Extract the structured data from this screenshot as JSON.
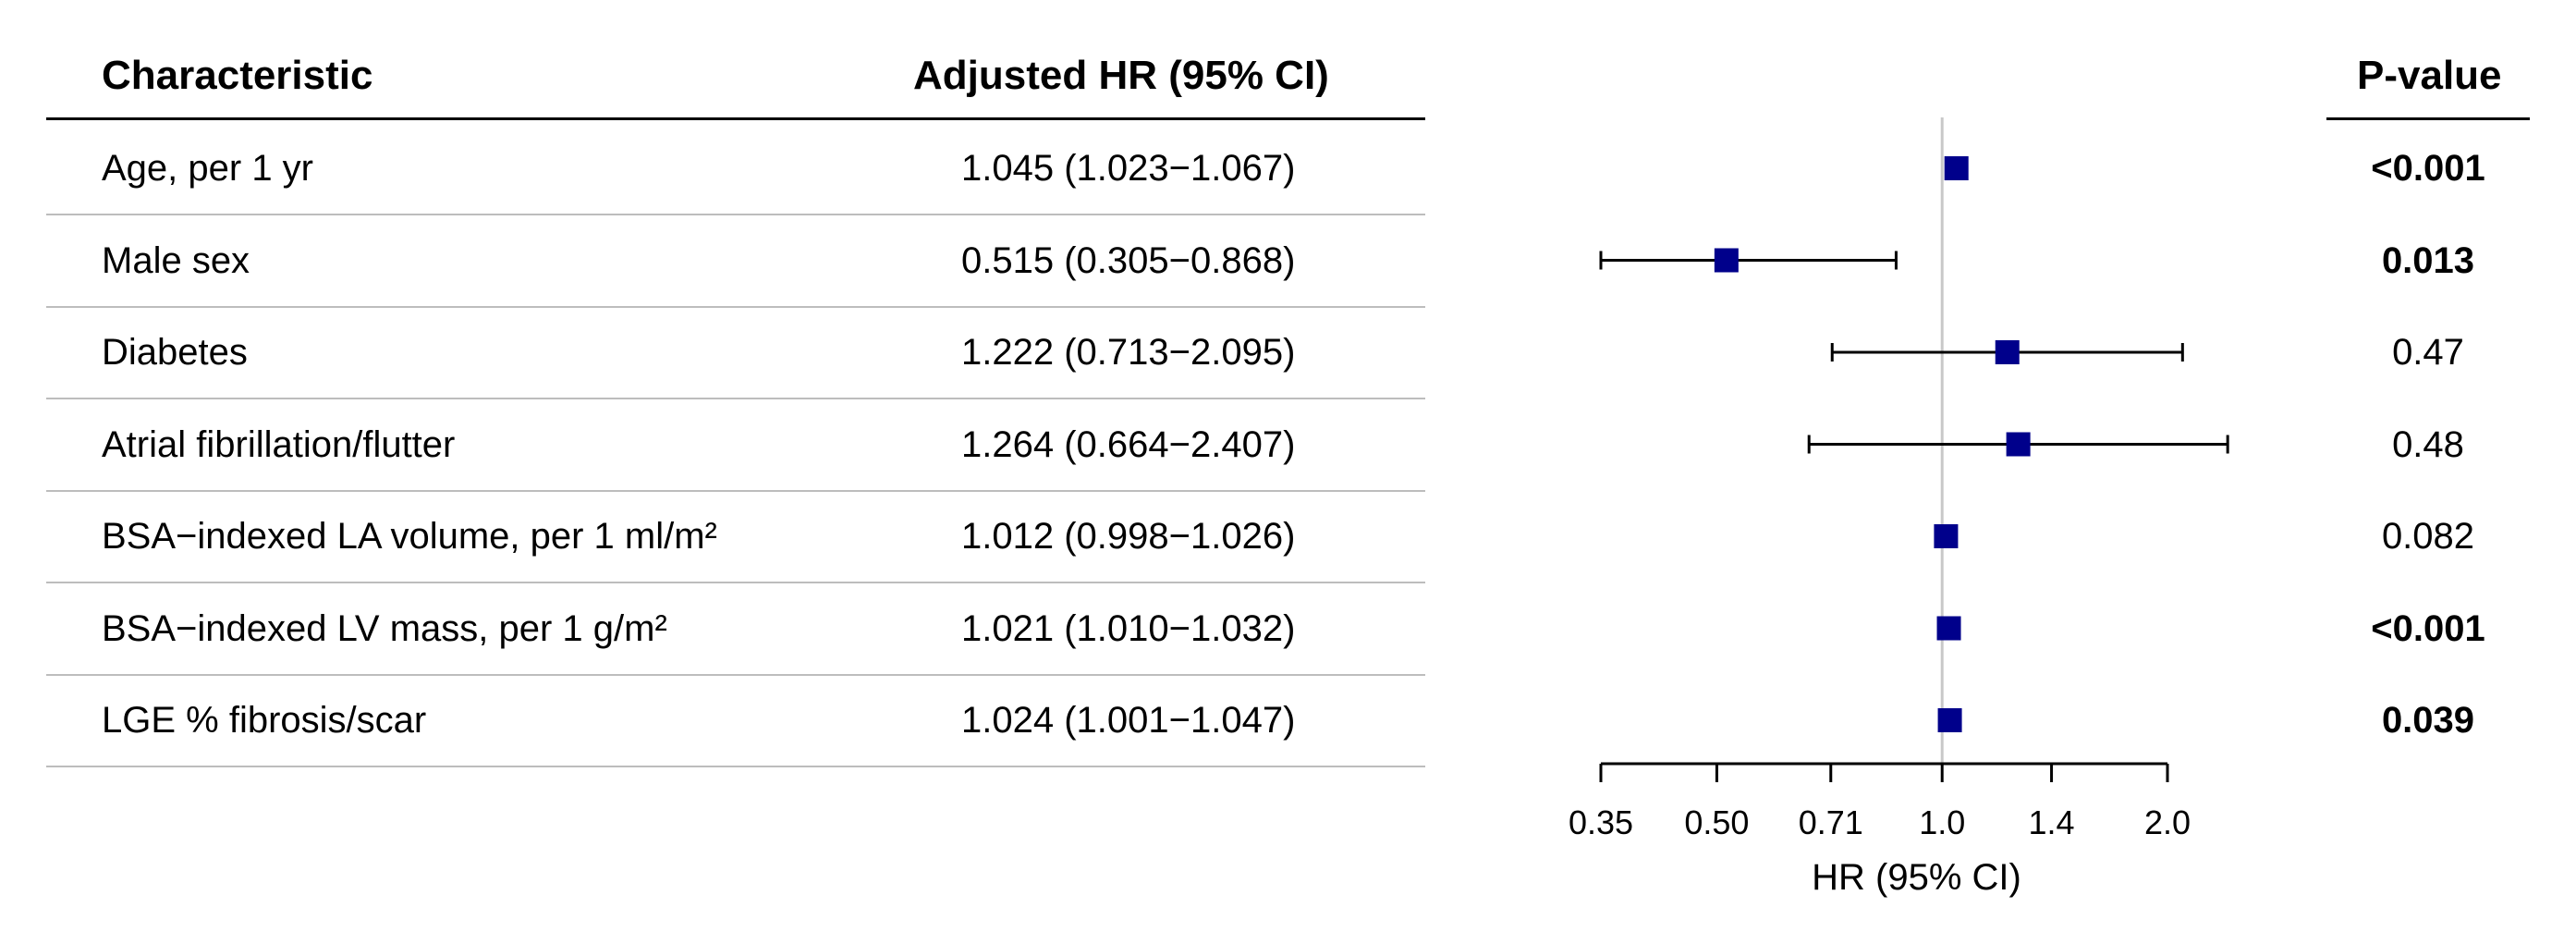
{
  "headers": {
    "characteristic": "Characteristic",
    "hr": "Adjusted HR (95% CI)",
    "pvalue": "P-value"
  },
  "rows": [
    {
      "label": "Age, per 1 yr",
      "hr_text": "1.045 (1.023−1.067)",
      "p": "<0.001",
      "p_bold": true
    },
    {
      "label": "Male sex",
      "hr_text": "0.515 (0.305−0.868)",
      "p": "0.013",
      "p_bold": true
    },
    {
      "label": "Diabetes",
      "hr_text": "1.222 (0.713−2.095)",
      "p": "0.47",
      "p_bold": false
    },
    {
      "label": "Atrial fibrillation/flutter",
      "hr_text": "1.264 (0.664−2.407)",
      "p": "0.48",
      "p_bold": false
    },
    {
      "label": "BSA−indexed LA volume, per 1 ml/m²",
      "hr_text": "1.012 (0.998−1.026)",
      "p": "0.082",
      "p_bold": false
    },
    {
      "label": "BSA−indexed LV mass, per 1 g/m²",
      "hr_text": "1.021 (1.010−1.032)",
      "p": "<0.001",
      "p_bold": true
    },
    {
      "label": "LGE % fibrosis/scar",
      "hr_text": "1.024 (1.001−1.047)",
      "p": "0.039",
      "p_bold": true
    }
  ],
  "chart_data": {
    "type": "scatter",
    "xlabel": "HR (95% CI)",
    "x_scale": "log",
    "xlim": [
      0.35,
      2.0
    ],
    "reference_line": 1.0,
    "x_ticks": [
      0.35,
      0.5,
      0.71,
      1.0,
      1.4,
      2.0
    ],
    "x_tick_labels": [
      "0.35",
      "0.50",
      "0.71",
      "1.0",
      "1.4",
      "2.0"
    ],
    "categories": [
      "Age, per 1 yr",
      "Male sex",
      "Diabetes",
      "Atrial fibrillation/flutter",
      "BSA−indexed LA volume, per 1 ml/m²",
      "BSA−indexed LV mass, per 1 g/m²",
      "LGE % fibrosis/scar"
    ],
    "points": [
      {
        "hr": 1.045,
        "lower": 1.023,
        "upper": 1.067
      },
      {
        "hr": 0.515,
        "lower": 0.305,
        "upper": 0.868
      },
      {
        "hr": 1.222,
        "lower": 0.713,
        "upper": 2.095
      },
      {
        "hr": 1.264,
        "lower": 0.664,
        "upper": 2.407
      },
      {
        "hr": 1.012,
        "lower": 0.998,
        "upper": 1.026
      },
      {
        "hr": 1.021,
        "lower": 1.01,
        "upper": 1.032
      },
      {
        "hr": 1.024,
        "lower": 1.001,
        "upper": 1.047
      }
    ],
    "marker_color": "#00008b",
    "grid": false
  }
}
